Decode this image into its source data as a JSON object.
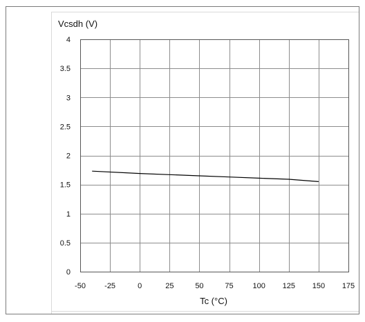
{
  "chart_data": {
    "type": "line",
    "title": "",
    "xlabel": "Tc (°C)",
    "ylabel": "Vcsdh (V)",
    "xlim": [
      -50,
      175
    ],
    "ylim": [
      0,
      4
    ],
    "x_ticks": [
      "-50",
      "-25",
      "0",
      "25",
      "50",
      "75",
      "100",
      "125",
      "150",
      "175"
    ],
    "y_ticks": [
      "0",
      "0.5",
      "1",
      "1.5",
      "2",
      "2.5",
      "3",
      "3.5",
      "4"
    ],
    "grid": true,
    "series": [
      {
        "x": [
          -40,
          0,
          25,
          50,
          75,
          100,
          125,
          150
        ],
        "y": [
          1.73,
          1.69,
          1.67,
          1.65,
          1.63,
          1.61,
          1.59,
          1.55
        ]
      }
    ]
  }
}
